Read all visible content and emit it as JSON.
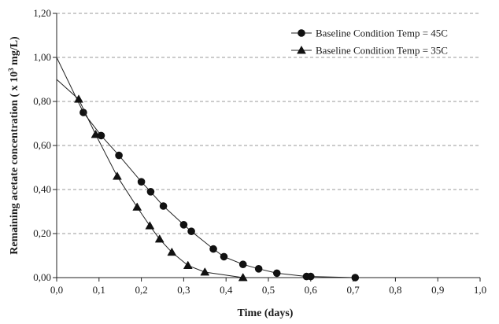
{
  "chart_data": {
    "type": "line",
    "title": "",
    "xlabel": "Time (days)",
    "ylabel": {
      "prefix": "Remaining acetate concentration ( x 10",
      "sup": "3",
      "suffix": " mg/L)"
    },
    "xlim": [
      0,
      1
    ],
    "ylim": [
      0,
      1.2
    ],
    "xticks": [
      "0,0",
      "0,1",
      "0,2",
      "0,3",
      "0,4",
      "0,5",
      "0,6",
      "0,7",
      "0,8",
      "0,9",
      "1,0"
    ],
    "yticks": [
      "0,00",
      "0,20",
      "0,40",
      "0,60",
      "0,80",
      "1,00",
      "1,20"
    ],
    "grid": "horizontal dashed",
    "legend_position": "top-right",
    "series": [
      {
        "name": "Baseline Condition Temp = 45C",
        "marker": "circle",
        "x": [
          0,
          0.063,
          0.105,
          0.147,
          0.2,
          0.222,
          0.252,
          0.3,
          0.318,
          0.37,
          0.395,
          0.44,
          0.477,
          0.52,
          0.59,
          0.6,
          0.705
        ],
        "y": [
          1.0,
          0.75,
          0.645,
          0.555,
          0.435,
          0.39,
          0.325,
          0.24,
          0.21,
          0.13,
          0.095,
          0.06,
          0.04,
          0.02,
          0.005,
          0.005,
          0.0
        ]
      },
      {
        "name": "Baseline Condition Temp = 35C",
        "marker": "triangle",
        "x": [
          0,
          0.052,
          0.092,
          0.143,
          0.19,
          0.22,
          0.243,
          0.272,
          0.31,
          0.35,
          0.44
        ],
        "y": [
          0.9,
          0.81,
          0.65,
          0.46,
          0.32,
          0.235,
          0.175,
          0.115,
          0.055,
          0.025,
          0.0
        ]
      }
    ]
  }
}
